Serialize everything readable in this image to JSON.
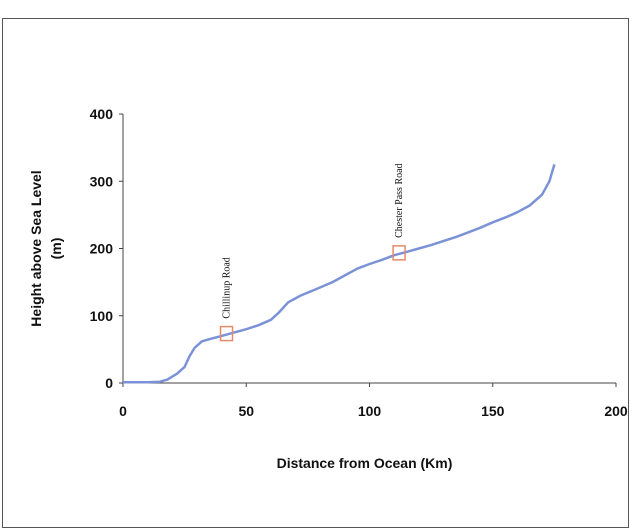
{
  "chart_data": {
    "type": "line",
    "xlabel": "Distance from Ocean (Km)",
    "ylabel_line1": "Height above Sea Level",
    "ylabel_line2": "(m)",
    "xlim": [
      0,
      200
    ],
    "ylim": [
      0,
      400
    ],
    "xticks": [
      0,
      50,
      100,
      150,
      200
    ],
    "yticks": [
      0,
      100,
      200,
      300,
      400
    ],
    "grid": false,
    "colors": {
      "line": "#7b92d6",
      "marker": "#e58a6a"
    },
    "series": [
      {
        "points": [
          [
            0,
            1
          ],
          [
            10,
            1
          ],
          [
            15,
            2
          ],
          [
            18,
            5
          ],
          [
            22,
            14
          ],
          [
            25,
            24
          ],
          [
            27,
            40
          ],
          [
            29,
            52
          ],
          [
            32,
            62
          ],
          [
            36,
            66
          ],
          [
            40,
            70
          ],
          [
            45,
            75
          ],
          [
            50,
            80
          ],
          [
            55,
            86
          ],
          [
            60,
            94
          ],
          [
            63,
            104
          ],
          [
            67,
            120
          ],
          [
            72,
            130
          ],
          [
            78,
            139
          ],
          [
            85,
            150
          ],
          [
            90,
            160
          ],
          [
            95,
            170
          ],
          [
            100,
            177
          ],
          [
            105,
            183
          ],
          [
            110,
            190
          ],
          [
            115,
            195
          ],
          [
            120,
            200
          ],
          [
            125,
            205
          ],
          [
            130,
            211
          ],
          [
            135,
            217
          ],
          [
            140,
            224
          ],
          [
            145,
            231
          ],
          [
            150,
            239
          ],
          [
            155,
            246
          ],
          [
            160,
            254
          ],
          [
            165,
            264
          ],
          [
            170,
            280
          ],
          [
            173,
            300
          ],
          [
            175,
            325
          ]
        ]
      }
    ],
    "annotations": [
      {
        "label": "Chillinup Road",
        "x": 42,
        "y": 72
      },
      {
        "label": "Chester Pass Road",
        "x": 112,
        "y": 192
      }
    ]
  }
}
